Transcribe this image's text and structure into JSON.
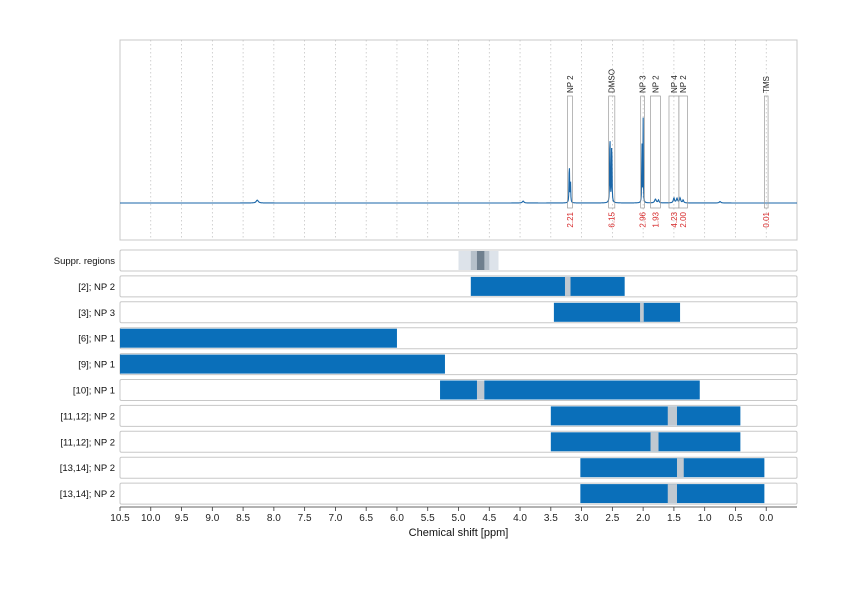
{
  "chart_data": {
    "type": "nmr-spectrum-with-region-bars",
    "xlabel": "Chemical shift [ppm]",
    "x_axis": {
      "range": [
        10.5,
        -0.5
      ],
      "reversed": true,
      "ticks": [
        10.5,
        10.0,
        9.5,
        9.0,
        8.5,
        8.0,
        7.5,
        7.0,
        6.5,
        6.0,
        5.5,
        5.0,
        4.5,
        4.0,
        3.5,
        3.0,
        2.5,
        2.0,
        1.5,
        1.0,
        0.5,
        0.0
      ],
      "tick_labels": [
        "10.5",
        "10.0",
        "9.5",
        "9.0",
        "8.5",
        "8.0",
        "7.5",
        "7.0",
        "6.5",
        "6.0",
        "5.5",
        "5.0",
        "4.5",
        "4.0",
        "3.5",
        "3.0",
        "2.5",
        "2.0",
        "1.5",
        "1.0",
        "0.5",
        "0.0"
      ]
    },
    "grid": true,
    "spectrum": {
      "color": "#1a66a8",
      "peaks": [
        {
          "ppm": 8.27,
          "height": 0.03,
          "width": 0.02
        },
        {
          "ppm": 3.95,
          "height": 0.02,
          "width": 0.015
        },
        {
          "ppm": 3.2,
          "height": 0.52,
          "width": 0.004
        },
        {
          "ppm": 3.18,
          "height": 0.22,
          "width": 0.004
        },
        {
          "ppm": 2.54,
          "height": 0.93,
          "width": 0.004
        },
        {
          "ppm": 2.51,
          "height": 0.82,
          "width": 0.004
        },
        {
          "ppm": 2.02,
          "height": 0.92,
          "width": 0.003
        },
        {
          "ppm": 2.0,
          "height": 0.9,
          "width": 0.003
        },
        {
          "ppm": 1.8,
          "height": 0.04,
          "width": 0.015
        },
        {
          "ppm": 1.75,
          "height": 0.03,
          "width": 0.01
        },
        {
          "ppm": 1.5,
          "height": 0.05,
          "width": 0.012
        },
        {
          "ppm": 1.45,
          "height": 0.045,
          "width": 0.012
        },
        {
          "ppm": 1.4,
          "height": 0.05,
          "width": 0.012
        },
        {
          "ppm": 1.35,
          "height": 0.03,
          "width": 0.01
        },
        {
          "ppm": 0.75,
          "height": 0.015,
          "width": 0.015
        }
      ]
    },
    "peak_annotations": [
      {
        "label": "NP 2",
        "from": 3.23,
        "to": 3.15,
        "integral": "2.21"
      },
      {
        "label": "DMSO",
        "from": 2.56,
        "to": 2.46,
        "integral": "6.15"
      },
      {
        "label": "NP 3",
        "from": 2.04,
        "to": 1.98,
        "integral": "2.96"
      },
      {
        "label": "NP 2",
        "from": 1.88,
        "to": 1.72,
        "integral": "1.93"
      },
      {
        "label": "NP 4",
        "from": 1.58,
        "to": 1.42,
        "integral": "4.23"
      },
      {
        "label": "NP 2",
        "from": 1.42,
        "to": 1.28,
        "integral": "2.00"
      },
      {
        "label": "TMS",
        "from": 0.03,
        "to": -0.03,
        "integral": "0.01"
      }
    ],
    "suppression": {
      "label": "Suppr. regions",
      "outer": [
        5.0,
        4.35
      ],
      "mid": [
        4.8,
        4.5
      ],
      "core": [
        4.7,
        4.58
      ]
    },
    "bar_color": "#0a6fba",
    "gap_color": "#c0c8d0",
    "rows": [
      {
        "label": "[2]; NP 2",
        "from": 4.8,
        "to": 2.3,
        "gaps": [
          [
            3.27,
            3.18
          ]
        ]
      },
      {
        "label": "[3]; NP 3",
        "from": 3.45,
        "to": 1.4,
        "gaps": [
          [
            2.05,
            1.99
          ]
        ]
      },
      {
        "label": "[6]; NP 1",
        "from": 10.5,
        "to": 6.0,
        "gaps": []
      },
      {
        "label": "[9]; NP 1",
        "from": 10.5,
        "to": 5.22,
        "gaps": []
      },
      {
        "label": "[10]; NP 1",
        "from": 5.3,
        "to": 1.08,
        "gaps": [
          [
            4.7,
            4.58
          ]
        ]
      },
      {
        "label": "[11,12]; NP 2",
        "from": 3.5,
        "to": 0.42,
        "gaps": [
          [
            1.6,
            1.45
          ]
        ]
      },
      {
        "label": "[11,12]; NP 2",
        "from": 3.5,
        "to": 0.42,
        "gaps": [
          [
            1.88,
            1.75
          ]
        ]
      },
      {
        "label": "[13,14]; NP 2",
        "from": 3.02,
        "to": 0.03,
        "gaps": [
          [
            1.45,
            1.34
          ]
        ]
      },
      {
        "label": "[13,14]; NP 2",
        "from": 3.02,
        "to": 0.03,
        "gaps": [
          [
            1.6,
            1.45
          ]
        ]
      }
    ]
  }
}
